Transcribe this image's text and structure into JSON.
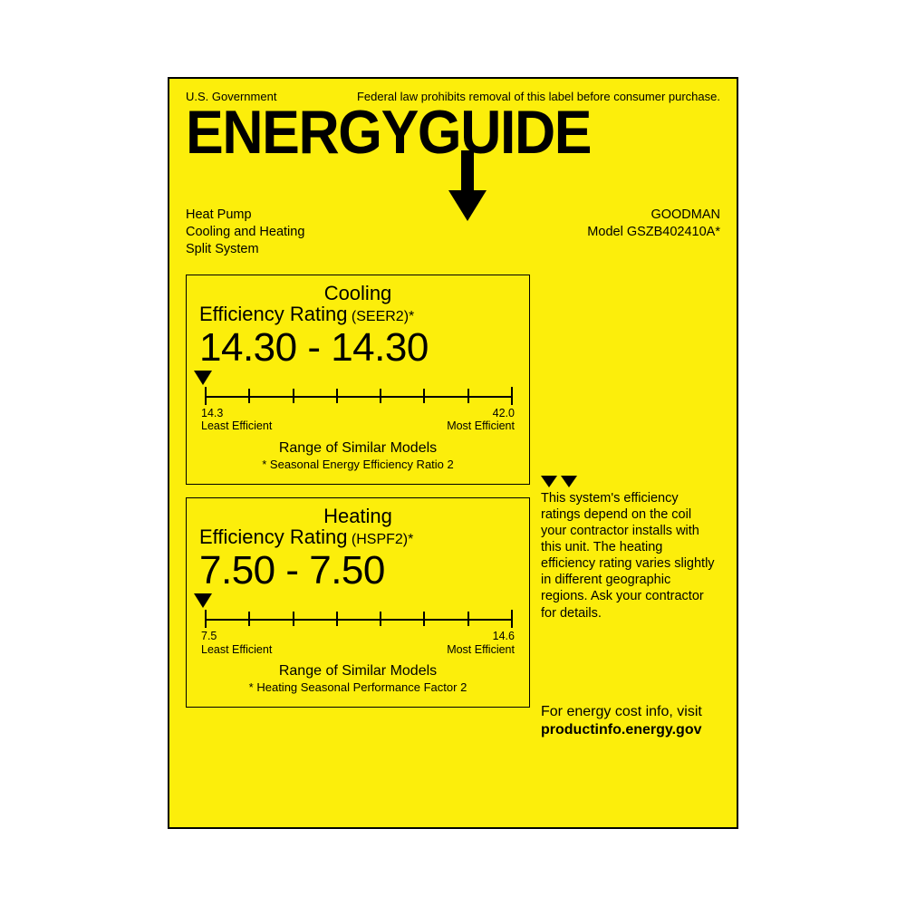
{
  "colors": {
    "label_bg": "#fcee0b",
    "border": "#000000",
    "text": "#000000",
    "page_bg": "#ffffff"
  },
  "header": {
    "gov": "U.S. Government",
    "federal_note": "Federal law prohibits removal of this label before consumer purchase.",
    "logo": "ENERGYGUIDE"
  },
  "product": {
    "type_line1": "Heat Pump",
    "type_line2": "Cooling and Heating",
    "type_line3": "Split System",
    "brand": "GOODMAN",
    "model": "Model GSZB402410A*"
  },
  "cooling": {
    "title": "Cooling",
    "subtitle": "Efficiency Rating",
    "metric": "(SEER2)*",
    "value": "14.30 - 14.30",
    "scale_min_label": "14.3",
    "scale_max_label": "42.0",
    "scale_min_caption": "Least Efficient",
    "scale_max_caption": "Most Efficient",
    "range_label": "Range of Similar Models",
    "footnote": "* Seasonal Energy Efficiency Ratio 2",
    "ticks": 8,
    "pointer_position_pct": 0
  },
  "heating": {
    "title": "Heating",
    "subtitle": "Efficiency Rating",
    "metric": "(HSPF2)*",
    "value": "7.50 - 7.50",
    "scale_min_label": "7.5",
    "scale_max_label": "14.6",
    "scale_min_caption": "Least Efficient",
    "scale_max_caption": "Most Efficient",
    "range_label": "Range of Similar Models",
    "footnote": "* Heating Seasonal Performance Factor 2",
    "ticks": 8,
    "pointer_position_pct": 0
  },
  "side_note": "This system's efficiency ratings depend on the coil your contractor installs with this unit.  The heating efficiency rating varies slightly in different geographic regions.  Ask your contractor for details.",
  "footer": {
    "line1": "For energy cost info, visit",
    "line2": "productinfo.energy.gov"
  }
}
